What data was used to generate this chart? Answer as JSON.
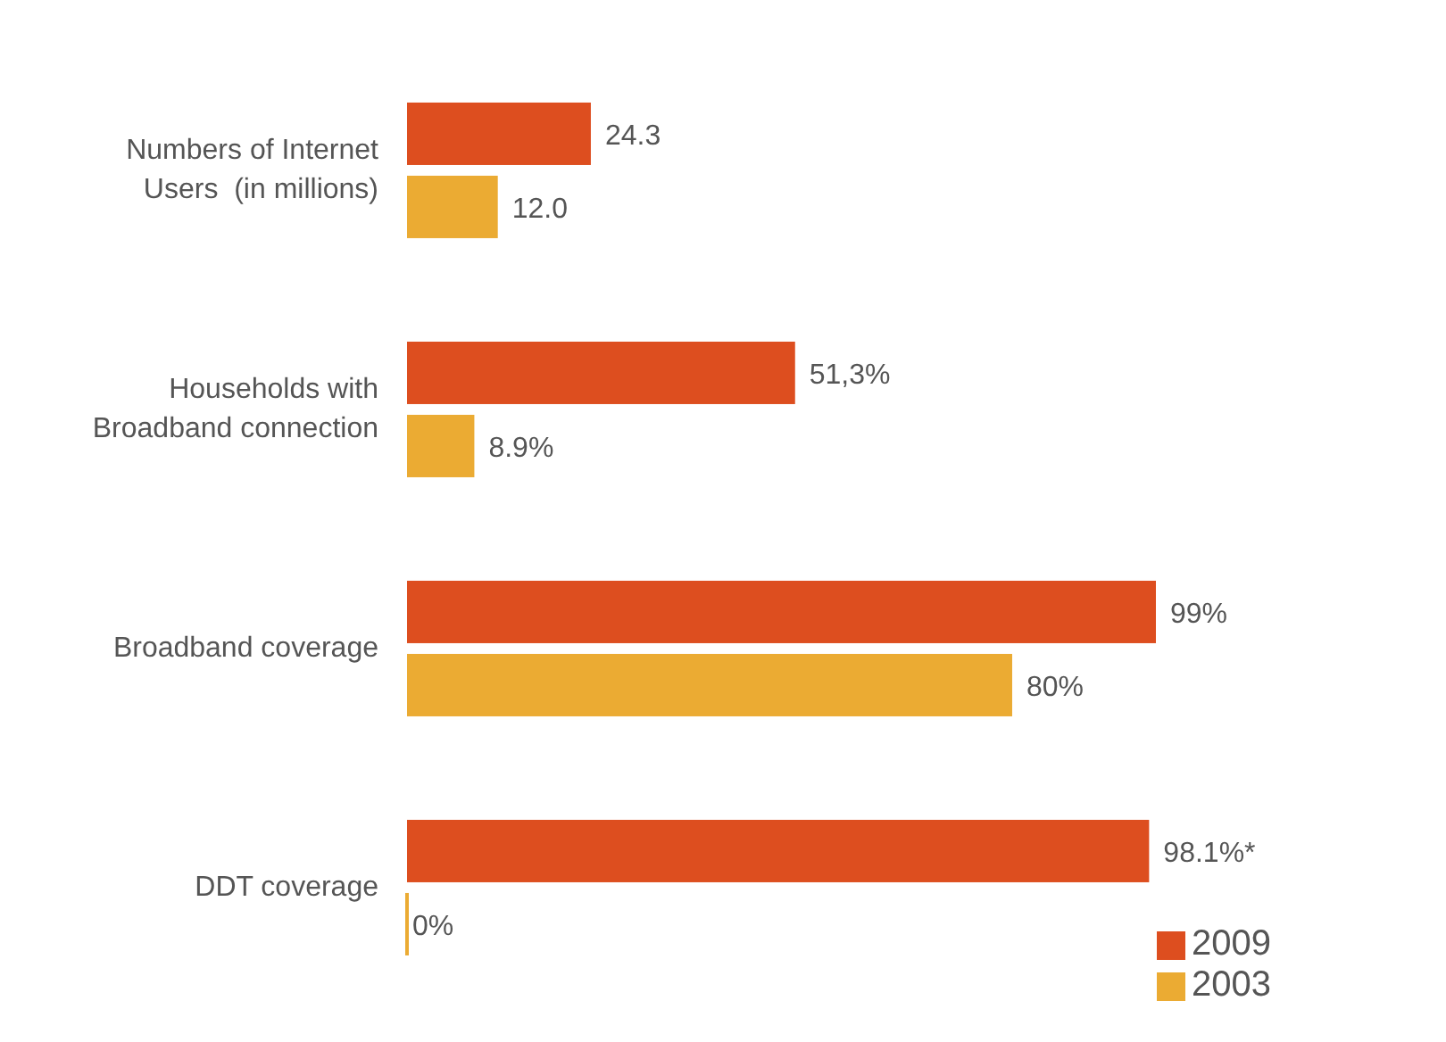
{
  "chart_data": {
    "type": "bar",
    "orientation": "horizontal",
    "categories": [
      "Numbers of Internet Users  (in millions)",
      "Households with Broadband connection",
      "Broadband coverage",
      "DDT coverage"
    ],
    "series": [
      {
        "name": "2009",
        "color": "#dd4e1f",
        "values": [
          24.3,
          51.3,
          99,
          98.1
        ],
        "value_labels": [
          "24.3",
          "51,3%",
          "99%",
          "98.1%*"
        ]
      },
      {
        "name": "2003",
        "color": "#ebab33",
        "values": [
          12.0,
          8.9,
          80,
          0
        ],
        "value_labels": [
          "12.0",
          "8.9%",
          "80%",
          "0%"
        ]
      }
    ],
    "legend": "bottom right"
  }
}
